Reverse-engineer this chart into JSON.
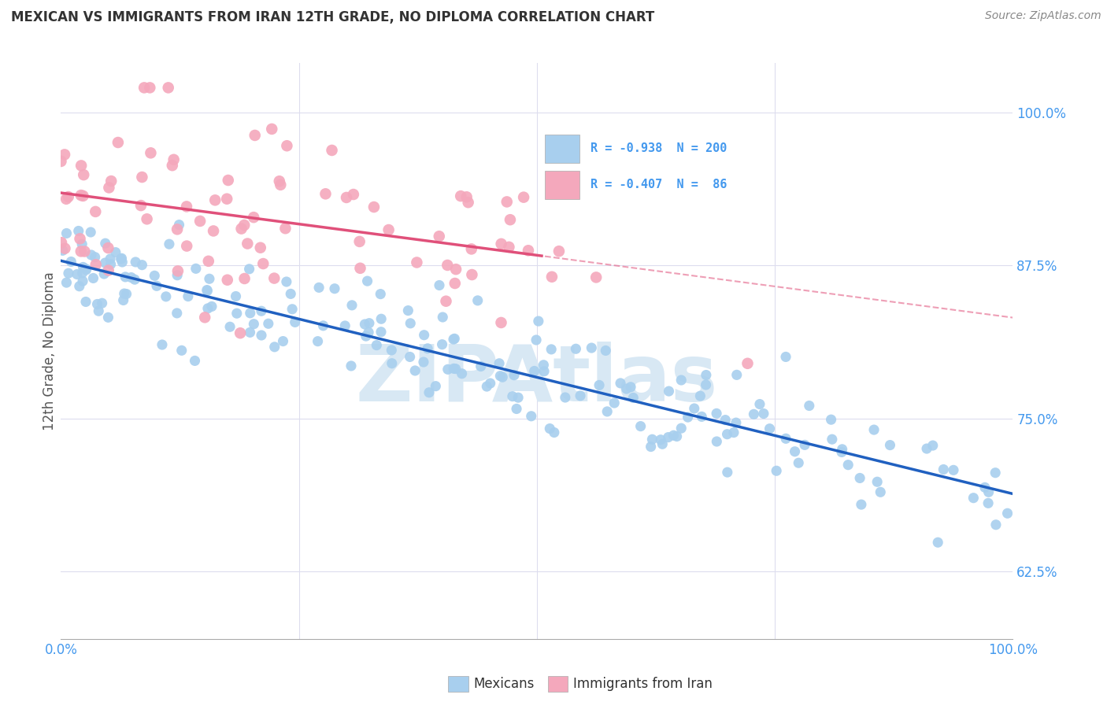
{
  "title": "MEXICAN VS IMMIGRANTS FROM IRAN 12TH GRADE, NO DIPLOMA CORRELATION CHART",
  "source": "Source: ZipAtlas.com",
  "ylabel": "12th Grade, No Diploma",
  "legend_blue_r": "-0.938",
  "legend_blue_n": "200",
  "legend_pink_r": "-0.407",
  "legend_pink_n": "86",
  "legend_blue_label": "Mexicans",
  "legend_pink_label": "Immigrants from Iran",
  "blue_color": "#A8CFEE",
  "pink_color": "#F4A8BC",
  "blue_line_color": "#2060C0",
  "pink_line_color": "#E0507A",
  "tick_color": "#4499EE",
  "grid_color": "#DDDDEE",
  "title_color": "#333333",
  "source_color": "#888888",
  "watermark_text": "ZIPAtlas",
  "watermark_color": "#D8E8F4",
  "xlim": [
    0,
    100
  ],
  "ylim": [
    57,
    104
  ],
  "ytick_positions": [
    62.5,
    75.0,
    87.5,
    100.0
  ],
  "ytick_labels": [
    "62.5%",
    "75.0%",
    "87.5%",
    "100.0%"
  ],
  "xtick_positions": [
    0,
    25,
    50,
    75,
    100
  ],
  "xtick_labels": [
    "0.0%",
    "",
    "",
    "",
    "100.0%"
  ]
}
